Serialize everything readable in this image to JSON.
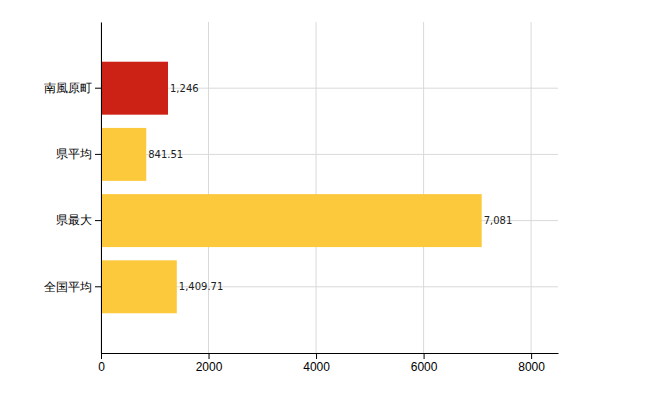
{
  "chart_data": {
    "type": "bar",
    "orientation": "horizontal",
    "categories": [
      "南風原町",
      "県平均",
      "県最大",
      "全国平均"
    ],
    "values": [
      1246,
      841.51,
      7081,
      1409.71
    ],
    "value_labels": [
      "1,246",
      "841.51",
      "7,081",
      "1,409.71"
    ],
    "colors": [
      "#cc2215",
      "#fcc83c",
      "#fcc83c",
      "#fcc83c"
    ],
    "xlim": [
      0,
      8500
    ],
    "xticks": [
      0,
      2000,
      4000,
      6000,
      8000
    ],
    "grid": true,
    "data_labels": true
  }
}
